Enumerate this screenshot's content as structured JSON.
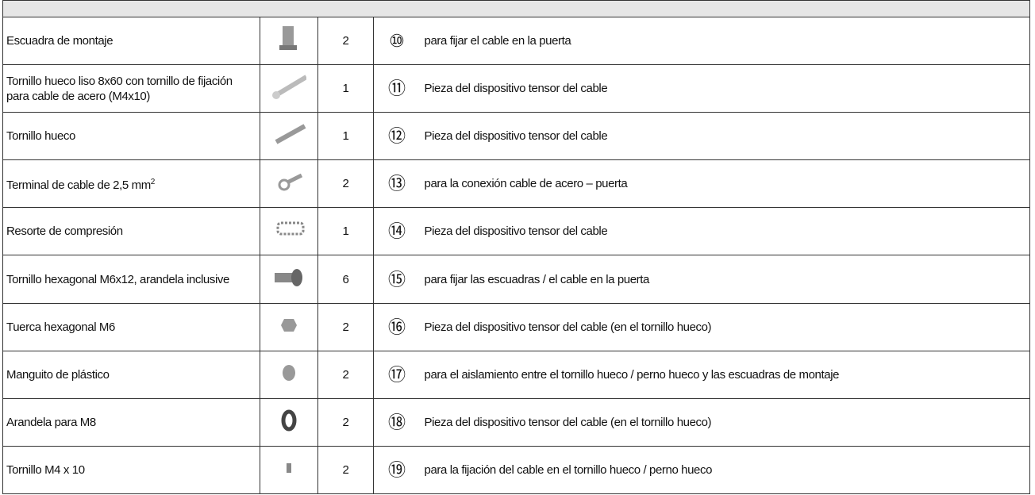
{
  "table": {
    "rows": [
      {
        "name": "Escuadra de montaje",
        "qty": "2",
        "num": "⑩",
        "desc": "para fijar el cable en la puerta"
      },
      {
        "name": "Tornillo hueco liso 8x60 con tornillo de fijación para cable de acero (M4x10)",
        "qty": "1",
        "num": "⑪",
        "desc": "Pieza del dispositivo tensor del cable"
      },
      {
        "name": "Tornillo hueco",
        "qty": "1",
        "num": "⑫",
        "desc": "Pieza del dispositivo tensor del cable"
      },
      {
        "name": "Terminal de cable de 2,5 mm",
        "sup": "2",
        "qty": "2",
        "num": "⑬",
        "desc": "para la conexión cable de acero – puerta"
      },
      {
        "name": "Resorte de compresión",
        "qty": "1",
        "num": "⑭",
        "desc": "Pieza del dispositivo tensor del cable"
      },
      {
        "name": "Tornillo hexagonal M6x12, arandela inclusive",
        "qty": "6",
        "num": "⑮",
        "desc": "para fijar las escuadras / el cable en la puerta"
      },
      {
        "name": "Tuerca hexagonal M6",
        "qty": "2",
        "num": "⑯",
        "desc": "Pieza del dispositivo tensor del cable (en el tornillo hueco)"
      },
      {
        "name": "Manguito de plástico",
        "qty": "2",
        "num": "⑰",
        "desc": "para el aislamiento entre el tornillo hueco / perno hueco y las escuadras de montaje"
      },
      {
        "name": "Arandela para M8",
        "qty": "2",
        "num": "⑱",
        "desc": "Pieza del dispositivo tensor del cable (en el tornillo hueco)"
      },
      {
        "name": "Tornillo M4 x 10",
        "qty": "2",
        "num": "⑲",
        "desc": "para la fijación del cable en el tornillo hueco / perno hueco"
      }
    ]
  }
}
